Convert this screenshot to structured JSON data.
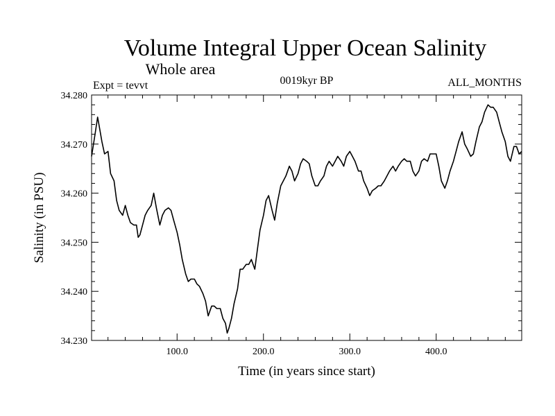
{
  "chart_data": {
    "type": "line",
    "title": "Volume Integral Upper Ocean Salinity",
    "subtitle": "Whole area",
    "annotations": {
      "left": "Expt = tevvt",
      "center": "0019kyr BP",
      "right": "ALL_MONTHS"
    },
    "xlabel": "Time (in years since start)",
    "ylabel": "Salinity (in PSU)",
    "xlim": [
      1,
      499
    ],
    "ylim": [
      34.23,
      34.28
    ],
    "xticks": [
      100,
      200,
      300,
      400
    ],
    "xtick_labels": [
      "100.0",
      "200.0",
      "300.0",
      "400.0"
    ],
    "yticks": [
      34.23,
      34.24,
      34.25,
      34.26,
      34.27,
      34.28
    ],
    "ytick_labels": [
      "34.230",
      "34.240",
      "34.250",
      "34.260",
      "34.270",
      "34.280"
    ],
    "grid": false,
    "series": [
      {
        "name": "",
        "color": "#000000",
        "x": [
          1,
          5,
          8,
          10,
          13,
          16,
          20,
          23,
          27,
          30,
          33,
          37,
          40,
          43,
          46,
          50,
          53,
          55,
          57,
          60,
          63,
          66,
          70,
          73,
          76,
          80,
          83,
          86,
          90,
          93,
          96,
          100,
          103,
          106,
          110,
          113,
          116,
          120,
          123,
          126,
          130,
          133,
          136,
          140,
          143,
          146,
          150,
          153,
          156,
          158,
          160,
          163,
          166,
          170,
          173,
          176,
          180,
          183,
          186,
          190,
          193,
          196,
          200,
          203,
          206,
          210,
          213,
          216,
          220,
          223,
          226,
          230,
          233,
          236,
          240,
          243,
          246,
          250,
          253,
          256,
          260,
          263,
          266,
          270,
          273,
          276,
          280,
          283,
          286,
          290,
          293,
          296,
          300,
          303,
          306,
          310,
          313,
          316,
          320,
          323,
          326,
          330,
          333,
          336,
          340,
          343,
          346,
          350,
          353,
          356,
          360,
          363,
          366,
          370,
          373,
          376,
          380,
          383,
          386,
          390,
          393,
          396,
          400,
          403,
          406,
          410,
          413,
          416,
          420,
          423,
          426,
          430,
          433,
          436,
          440,
          443,
          446,
          450,
          453,
          456,
          460,
          463,
          466,
          470,
          473,
          476,
          480,
          483,
          486,
          490,
          493,
          496,
          499
        ],
        "values": [
          34.2675,
          34.272,
          34.2755,
          34.2735,
          34.2705,
          34.268,
          34.2685,
          34.264,
          34.2625,
          34.2585,
          34.2565,
          34.2555,
          34.2575,
          34.2555,
          34.254,
          34.2535,
          34.2535,
          34.251,
          34.2515,
          34.2535,
          34.2555,
          34.2565,
          34.2575,
          34.26,
          34.257,
          34.2535,
          34.2555,
          34.2565,
          34.257,
          34.2565,
          34.2545,
          34.252,
          34.2495,
          34.2465,
          34.2435,
          34.242,
          34.2425,
          34.2425,
          34.2415,
          34.241,
          34.2395,
          34.238,
          34.235,
          34.237,
          34.237,
          34.2365,
          34.2365,
          34.2345,
          34.2335,
          34.2315,
          34.2325,
          34.2345,
          34.2375,
          34.2405,
          34.2445,
          34.2445,
          34.2455,
          34.2455,
          34.2465,
          34.2445,
          34.2485,
          34.2525,
          34.2555,
          34.2585,
          34.2595,
          34.2565,
          34.2545,
          34.258,
          34.2615,
          34.2625,
          34.2635,
          34.2655,
          34.2645,
          34.2625,
          34.264,
          34.266,
          34.267,
          34.2665,
          34.266,
          34.2635,
          34.2615,
          34.2615,
          34.2625,
          34.2635,
          34.2655,
          34.2665,
          34.2655,
          34.2665,
          34.2675,
          34.2665,
          34.2655,
          34.2675,
          34.2685,
          34.2675,
          34.2665,
          34.2645,
          34.2645,
          34.2625,
          34.261,
          34.2595,
          34.2605,
          34.261,
          34.2615,
          34.2615,
          34.2625,
          34.2635,
          34.2645,
          34.2655,
          34.2645,
          34.2655,
          34.2665,
          34.267,
          34.2665,
          34.2665,
          34.2645,
          34.2635,
          34.2645,
          34.2665,
          34.267,
          34.2665,
          34.268,
          34.268,
          34.268,
          34.2655,
          34.2625,
          34.261,
          34.2625,
          34.2645,
          34.2665,
          34.2685,
          34.2705,
          34.2725,
          34.27,
          34.269,
          34.2675,
          34.268,
          34.2705,
          34.2735,
          34.2745,
          34.2765,
          34.278,
          34.2775,
          34.2775,
          34.2765,
          34.2745,
          34.2725,
          34.2705,
          34.2675,
          34.2665,
          34.2695,
          34.2695,
          34.268,
          34.2685
        ]
      }
    ]
  }
}
